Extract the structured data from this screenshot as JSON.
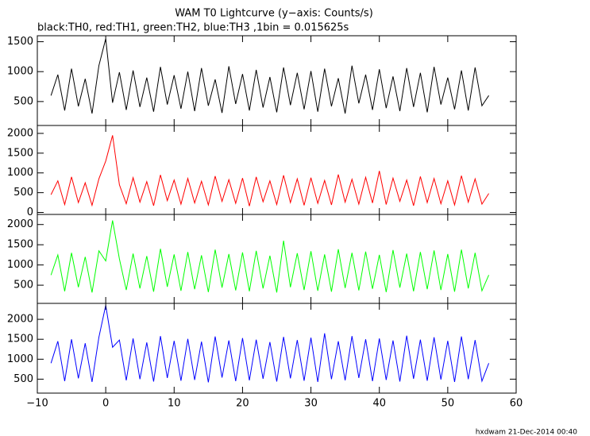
{
  "chart_data": {
    "type": "line",
    "title": "WAM T0 Lightcurve (y−axis: Counts/s)",
    "subtitle": "black:TH0, red:TH1, green:TH2, blue:TH3 ,1bin = 0.015625s",
    "footer": "hxdwam 21-Dec-2014 00:40",
    "xlim": [
      -10,
      60
    ],
    "xticks": [
      {
        "value": -10,
        "label": "−10"
      },
      0,
      10,
      20,
      30,
      40,
      50,
      60
    ],
    "x": [
      -8,
      -7,
      -6,
      -5,
      -4,
      -3,
      -2,
      -1,
      0,
      1,
      2,
      3,
      4,
      5,
      6,
      7,
      8,
      9,
      10,
      11,
      12,
      13,
      14,
      15,
      16,
      17,
      18,
      19,
      20,
      21,
      22,
      23,
      24,
      25,
      26,
      27,
      28,
      29,
      30,
      31,
      32,
      33,
      34,
      35,
      36,
      37,
      38,
      39,
      40,
      41,
      42,
      43,
      44,
      45,
      46,
      47,
      48,
      49,
      50,
      51,
      52,
      53,
      54,
      55,
      56
    ],
    "panels": [
      {
        "color": "#000000",
        "ylim": [
          100,
          1600
        ],
        "yticks": [
          500,
          1000,
          1500
        ],
        "values": [
          600,
          950,
          350,
          1050,
          420,
          880,
          300,
          1100,
          1550,
          480,
          990,
          360,
          1020,
          410,
          900,
          330,
          1080,
          450,
          940,
          380,
          1000,
          340,
          1060,
          430,
          870,
          310,
          1090,
          460,
          960,
          350,
          1030,
          400,
          910,
          320,
          1070,
          440,
          980,
          370,
          1010,
          330,
          1050,
          420,
          890,
          300,
          1100,
          470,
          950,
          360,
          1040,
          390,
          920,
          340,
          1060,
          410,
          980,
          320,
          1080,
          450,
          900,
          370,
          1020,
          350,
          1070,
          430,
          600
        ]
      },
      {
        "color": "#ff0000",
        "ylim": [
          -50,
          2200
        ],
        "yticks": [
          0,
          500,
          1000,
          1500,
          2000
        ],
        "values": [
          450,
          800,
          200,
          900,
          250,
          750,
          180,
          850,
          1300,
          1950,
          700,
          220,
          880,
          260,
          780,
          170,
          950,
          300,
          820,
          210,
          860,
          240,
          790,
          190,
          920,
          280,
          830,
          230,
          870,
          160,
          900,
          270,
          800,
          200,
          940,
          250,
          850,
          180,
          880,
          230,
          810,
          190,
          960,
          260,
          840,
          210,
          890,
          240,
          1050,
          200,
          870,
          280,
          820,
          170,
          910,
          250,
          860,
          220,
          800,
          190,
          930,
          260,
          850,
          210,
          480
        ]
      },
      {
        "color": "#00ff00",
        "ylim": [
          50,
          2250
        ],
        "yticks": [
          500,
          1000,
          1500,
          2000
        ],
        "values": [
          750,
          1250,
          350,
          1300,
          450,
          1200,
          320,
          1350,
          1100,
          2100,
          1150,
          380,
          1280,
          420,
          1220,
          340,
          1400,
          460,
          1260,
          360,
          1320,
          400,
          1240,
          330,
          1380,
          440,
          1270,
          370,
          1310,
          350,
          1350,
          420,
          1230,
          320,
          1600,
          450,
          1290,
          380,
          1340,
          360,
          1260,
          340,
          1390,
          430,
          1300,
          370,
          1330,
          410,
          1250,
          330,
          1370,
          440,
          1280,
          350,
          1320,
          400,
          1360,
          380,
          1270,
          340,
          1380,
          420,
          1300,
          360,
          750
        ]
      },
      {
        "color": "#0000ff",
        "ylim": [
          150,
          2400
        ],
        "yticks": [
          500,
          1000,
          1500,
          2000
        ],
        "values": [
          900,
          1450,
          450,
          1500,
          520,
          1400,
          430,
          1550,
          2350,
          1300,
          1480,
          470,
          1520,
          500,
          1420,
          440,
          1580,
          530,
          1460,
          460,
          1510,
          480,
          1440,
          420,
          1570,
          540,
          1470,
          450,
          1530,
          470,
          1490,
          510,
          1430,
          440,
          1560,
          520,
          1480,
          460,
          1540,
          430,
          1650,
          500,
          1450,
          470,
          1580,
          530,
          1500,
          450,
          1520,
          480,
          1470,
          440,
          1590,
          510,
          1490,
          460,
          1550,
          490,
          1460,
          430,
          1570,
          500,
          1480,
          450,
          900
        ]
      }
    ]
  }
}
